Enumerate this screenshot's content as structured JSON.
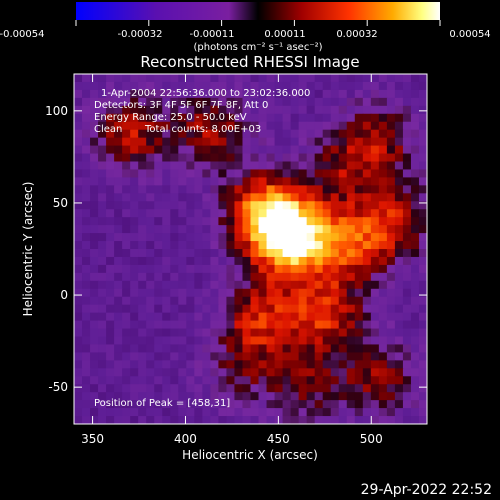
{
  "chart_data": {
    "type": "heatmap",
    "title": "Reconstructed RHESSI Image",
    "xlabel": "Heliocentric X (arcsec)",
    "ylabel": "Heliocentric Y (arcsec)",
    "xlim": [
      340,
      530
    ],
    "ylim": [
      -70,
      120
    ],
    "x_ticks": [
      350,
      400,
      450,
      500
    ],
    "y_ticks": [
      -50,
      0,
      50,
      100
    ],
    "colorbar": {
      "ticks": [
        "-0.00054",
        "-0.00032",
        "-0.00011",
        "0.00011",
        "0.00032",
        "0.00054"
      ],
      "range": [
        -0.00054,
        0.00054
      ],
      "units": "(photons cm⁻² s⁻¹ asec⁻²)"
    },
    "annotations": [
      "1-Apr-2004 22:56:36.000 to 23:02:36.000",
      "Detectors: 3F 4F 5F 6F 7F 8F, Att 0",
      "Energy Range: 25.0 - 50.0 keV",
      "Clean",
      "Total counts: 8.00E+03"
    ],
    "peak_label": "Position of Peak = [458,31]",
    "peak": [
      458,
      31
    ],
    "sources": [
      {
        "x": 458,
        "y": 31,
        "amp": 1.0
      },
      {
        "x": 442,
        "y": 45,
        "amp": 0.75
      },
      {
        "x": 490,
        "y": 28,
        "amp": 0.55
      },
      {
        "x": 475,
        "y": -10,
        "amp": 0.55
      },
      {
        "x": 440,
        "y": -12,
        "amp": 0.5
      },
      {
        "x": 370,
        "y": 88,
        "amp": 0.5
      },
      {
        "x": 415,
        "y": 90,
        "amp": 0.45
      },
      {
        "x": 505,
        "y": 85,
        "amp": 0.4
      },
      {
        "x": 515,
        "y": 40,
        "amp": 0.45
      },
      {
        "x": 485,
        "y": 70,
        "amp": 0.35
      },
      {
        "x": 505,
        "y": -45,
        "amp": 0.4
      },
      {
        "x": 465,
        "y": -50,
        "amp": 0.35
      },
      {
        "x": 430,
        "y": -40,
        "amp": 0.3
      }
    ],
    "colormap_stops": [
      "#0000ff",
      "#4b0a9e",
      "#7a1fa0",
      "#000000",
      "#8b0000",
      "#ff2a00",
      "#ff9a00",
      "#ffff66",
      "#ffffff"
    ]
  },
  "timestamp": "29-Apr-2022 22:52"
}
